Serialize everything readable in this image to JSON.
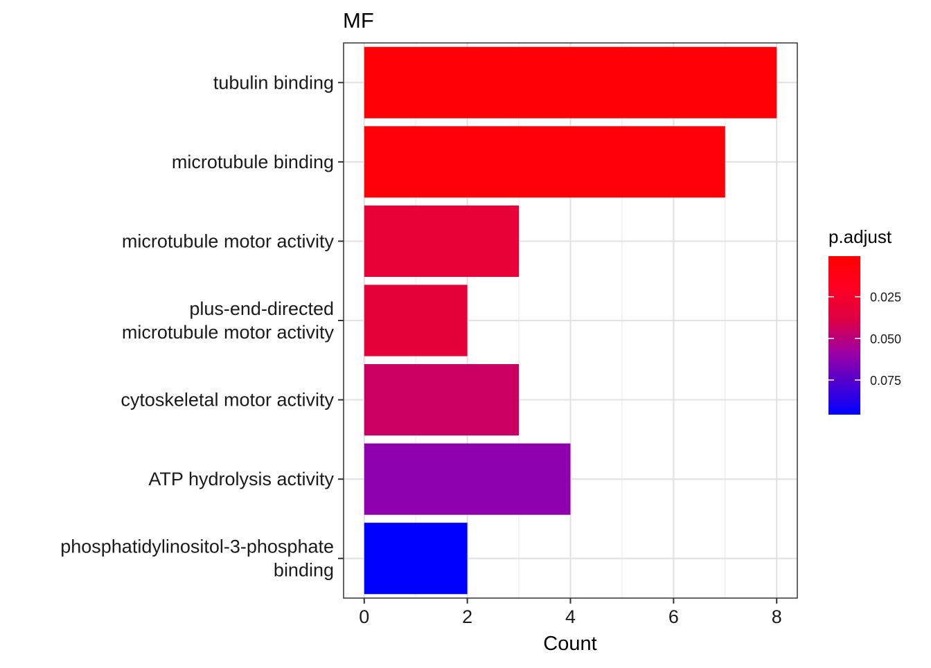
{
  "chart_data": {
    "type": "bar",
    "orientation": "horizontal",
    "title": "MF",
    "xlabel": "Count",
    "ylabel": "",
    "xlim": [
      -0.4,
      8.4
    ],
    "x_ticks": [
      0,
      2,
      4,
      6,
      8
    ],
    "x_tick_labels": [
      "0",
      "2",
      "4",
      "6",
      "8"
    ],
    "grid": true,
    "categories": [
      [
        "tubulin binding"
      ],
      [
        "microtubule binding"
      ],
      [
        "microtubule motor activity"
      ],
      [
        "plus-end-directed",
        "microtubule motor activity"
      ],
      [
        "cytoskeletal motor activity"
      ],
      [
        "ATP hydrolysis activity"
      ],
      [
        "phosphatidylinositol-3-phosphate",
        "binding"
      ]
    ],
    "values": [
      8,
      7,
      3,
      2,
      3,
      4,
      2
    ],
    "bar_colors": [
      "#FF0006",
      "#FF0009",
      "#E80037",
      "#E60039",
      "#C90062",
      "#8F00AE",
      "#0000FF"
    ],
    "legend": {
      "title": "p.adjust",
      "position": "right",
      "gradient": [
        "#FF0000",
        "#FF0022",
        "#DD0044",
        "#A000A0",
        "#5000D0",
        "#0000FF"
      ],
      "ticks": [
        0.025,
        0.05,
        0.075
      ],
      "tick_labels": [
        "0.025",
        "0.050",
        "0.075"
      ],
      "range": [
        0.0006,
        0.0958
      ]
    }
  }
}
